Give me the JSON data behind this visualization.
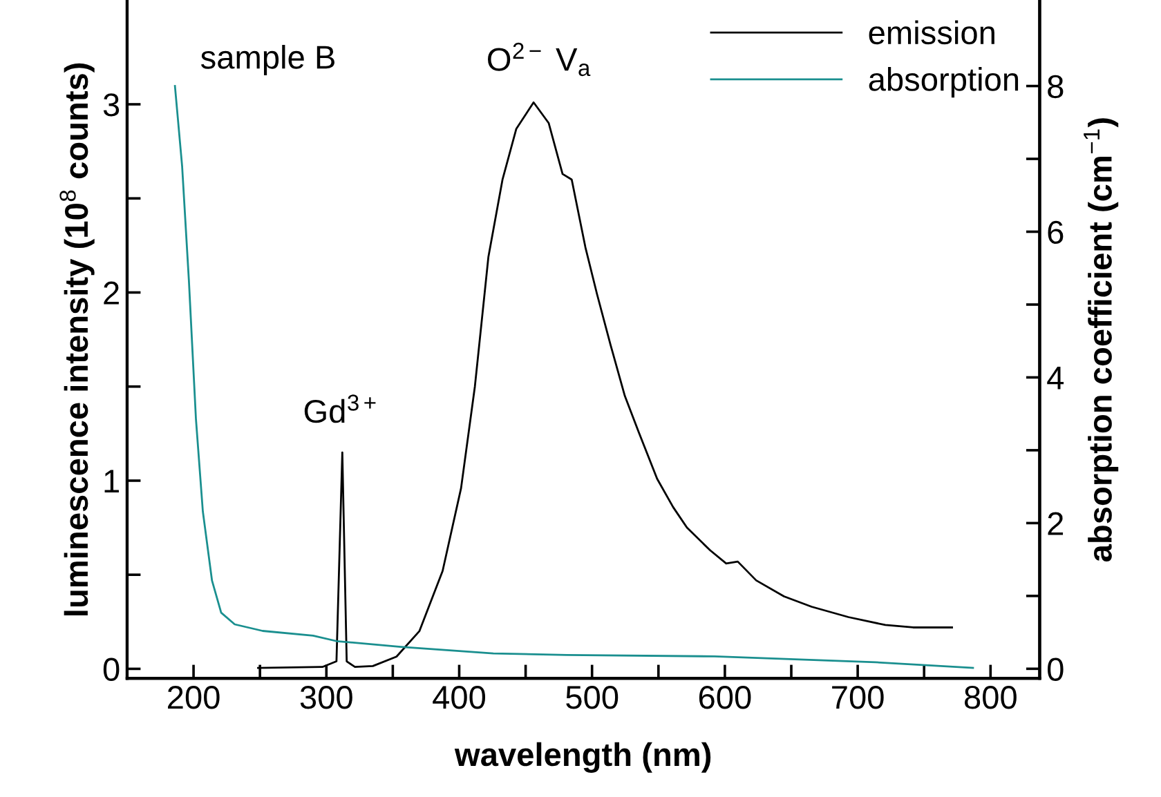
{
  "chart_data": {
    "type": "line",
    "xlabel": "wavelength (nm)",
    "ylabel": "luminescence intensity (10$^{8}$ counts)",
    "y2label": "absorption coefficient (cm$^{−1}$)",
    "xlim": [
      150,
      837
    ],
    "ylim": [
      -0.05,
      3.55
    ],
    "y2lim": [
      -0.13,
      9.17
    ],
    "xticks": [
      200,
      {
        "value": 250,
        "label": null
      },
      300,
      {
        "value": 350,
        "label": null
      },
      400,
      {
        "value": 450,
        "label": null
      },
      500,
      {
        "value": 550,
        "label": null
      },
      600,
      {
        "value": 650,
        "label": null
      },
      700,
      {
        "value": 750,
        "label": null
      },
      800
    ],
    "yticks": [
      0,
      {
        "value": 0.5,
        "label": null
      },
      1,
      {
        "value": 1.5,
        "label": null
      },
      2,
      {
        "value": 2.5,
        "label": null
      },
      3
    ],
    "y2ticks": [
      0,
      {
        "value": 1,
        "label": null
      },
      2,
      {
        "value": 3,
        "label": null
      },
      4,
      {
        "value": 5,
        "label": null
      },
      6,
      {
        "value": 7,
        "label": null
      },
      8
    ],
    "grid": false,
    "legend": "top right",
    "marker": "none",
    "line_style": "solid",
    "series": [
      {
        "name": "emission",
        "color": "#000000",
        "x": [
          248.6,
          297,
          307.6,
          312,
          315.3,
          321.5,
          335,
          352.8,
          370,
          387.5,
          401.4,
          411.8,
          422,
          432.6,
          443,
          456,
          467.4,
          477.8,
          484.7,
          495,
          503.8,
          514,
          524.7,
          535,
          549,
          561,
          571.5,
          588.9,
          601,
          609.7,
          623.6,
          644.5,
          665.3,
          693,
          720.8,
          741.7,
          771
        ],
        "values": [
          0.005,
          0.01,
          0.04,
          1.15,
          0.04,
          0.01,
          0.015,
          0.065,
          0.2,
          0.52,
          0.96,
          1.5,
          2.19,
          2.6,
          2.87,
          3.01,
          2.9,
          2.63,
          2.6,
          2.24,
          1.99,
          1.72,
          1.45,
          1.26,
          1.01,
          0.86,
          0.75,
          0.63,
          0.56,
          0.57,
          0.47,
          0.385,
          0.33,
          0.275,
          0.233,
          0.22,
          0.22
        ]
      },
      {
        "name": "absorption",
        "color": "#1a8f8f",
        "axis": "y2",
        "x": [
          186,
          191.4,
          196.5,
          201.8,
          207,
          213.9,
          220.8,
          231,
          252,
          290,
          307.6,
          356,
          425.7,
          481,
          592,
          713.5,
          786.8
        ],
        "values": [
          8.0,
          6.9,
          5.33,
          3.43,
          2.16,
          1.21,
          0.77,
          0.61,
          0.52,
          0.455,
          0.38,
          0.3,
          0.21,
          0.19,
          0.17,
          0.09,
          0.013
        ]
      }
    ],
    "annotations": [
      "sample B",
      {
        "text": "Gd$^{3+}$",
        "x": 312,
        "y": 1.15
      },
      {
        "text": "O$^{2−}$ V$_{a}$",
        "x": 460,
        "y": 3.02
      }
    ]
  }
}
